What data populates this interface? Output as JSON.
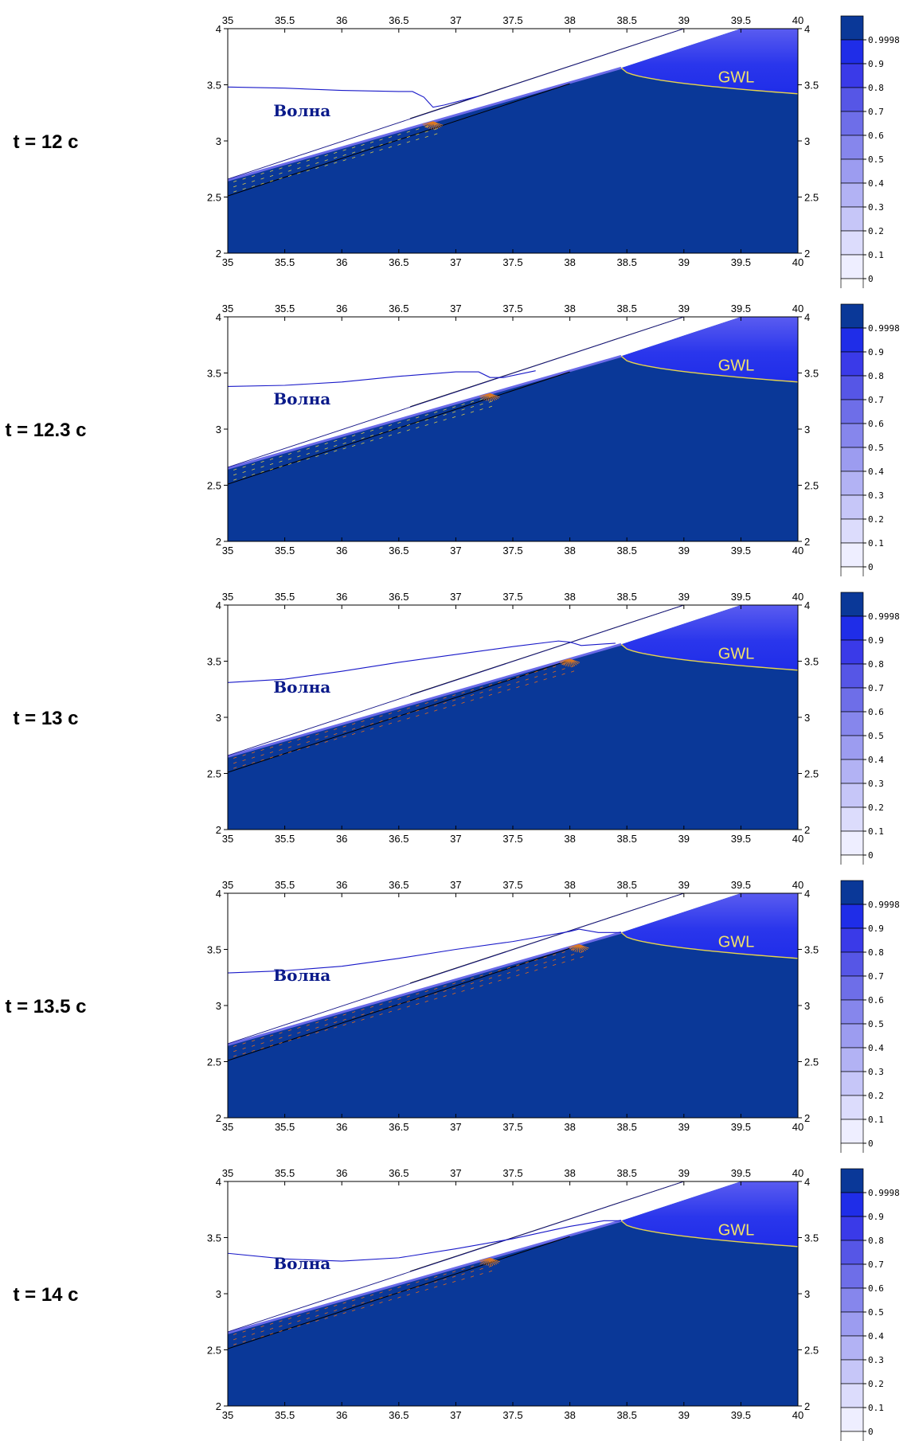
{
  "chart_data": [
    {
      "type": "contour",
      "time_label": "t = 12 с",
      "wave_label": "Волна",
      "gwl_label": "GWL",
      "xlim": [
        35,
        40
      ],
      "ylim": [
        2,
        4
      ],
      "x_ticks": [
        "35",
        "35.5",
        "36",
        "36.5",
        "37",
        "37.5",
        "38",
        "38.5",
        "39",
        "39.5",
        "40"
      ],
      "y_ticks": [
        "2",
        "2.5",
        "3",
        "3.5",
        "4"
      ],
      "colorbar": [
        "0.9998",
        "0.9",
        "0.8",
        "0.7",
        "0.6",
        "0.5",
        "0.4",
        "0.3",
        "0.2",
        "0.1",
        "0"
      ],
      "wave_profile": [
        [
          35,
          3.48
        ],
        [
          35.5,
          3.47
        ],
        [
          36,
          3.45
        ],
        [
          36.5,
          3.44
        ],
        [
          36.62,
          3.44
        ],
        [
          36.72,
          3.39
        ],
        [
          36.8,
          3.3
        ],
        [
          36.9,
          3.32
        ],
        [
          37.2,
          3.4
        ]
      ],
      "front_x": 36.8
    },
    {
      "type": "contour",
      "time_label": "t = 12.3 с",
      "wave_label": "Волна",
      "gwl_label": "GWL",
      "xlim": [
        35,
        40
      ],
      "ylim": [
        2,
        4
      ],
      "x_ticks": [
        "35",
        "35.5",
        "36",
        "36.5",
        "37",
        "37.5",
        "38",
        "38.5",
        "39",
        "39.5",
        "40"
      ],
      "y_ticks": [
        "2",
        "2.5",
        "3",
        "3.5",
        "4"
      ],
      "colorbar": [
        "0.9998",
        "0.9",
        "0.8",
        "0.7",
        "0.6",
        "0.5",
        "0.4",
        "0.3",
        "0.2",
        "0.1",
        "0"
      ],
      "wave_profile": [
        [
          35,
          3.38
        ],
        [
          35.5,
          3.39
        ],
        [
          36,
          3.42
        ],
        [
          36.5,
          3.47
        ],
        [
          37,
          3.51
        ],
        [
          37.2,
          3.51
        ],
        [
          37.3,
          3.46
        ],
        [
          37.42,
          3.46
        ],
        [
          37.7,
          3.52
        ]
      ],
      "front_x": 37.3
    },
    {
      "type": "contour",
      "time_label": "t = 13 с",
      "wave_label": "Волна",
      "gwl_label": "GWL",
      "xlim": [
        35,
        40
      ],
      "ylim": [
        2,
        4
      ],
      "x_ticks": [
        "35",
        "35.5",
        "36",
        "36.5",
        "37",
        "37.5",
        "38",
        "38.5",
        "39",
        "39.5",
        "40"
      ],
      "y_ticks": [
        "2",
        "2.5",
        "3",
        "3.5",
        "4"
      ],
      "colorbar": [
        "0.9998",
        "0.9",
        "0.8",
        "0.7",
        "0.6",
        "0.5",
        "0.4",
        "0.3",
        "0.2",
        "0.1",
        "0"
      ],
      "wave_profile": [
        [
          35,
          3.31
        ],
        [
          35.5,
          3.34
        ],
        [
          36,
          3.41
        ],
        [
          36.5,
          3.49
        ],
        [
          37,
          3.56
        ],
        [
          37.5,
          3.63
        ],
        [
          37.9,
          3.68
        ],
        [
          38,
          3.67
        ],
        [
          38.1,
          3.64
        ],
        [
          38.4,
          3.66
        ]
      ],
      "front_x": 38.0
    },
    {
      "type": "contour",
      "time_label": "t = 13.5 с",
      "wave_label": "Волна",
      "gwl_label": "GWL",
      "xlim": [
        35,
        40
      ],
      "ylim": [
        2,
        4
      ],
      "x_ticks": [
        "35",
        "35.5",
        "36",
        "36.5",
        "37",
        "37.5",
        "38",
        "38.5",
        "39",
        "39.5",
        "40"
      ],
      "y_ticks": [
        "2",
        "2.5",
        "3",
        "3.5",
        "4"
      ],
      "colorbar": [
        "0.9998",
        "0.9",
        "0.8",
        "0.7",
        "0.6",
        "0.5",
        "0.4",
        "0.3",
        "0.2",
        "0.1",
        "0"
      ],
      "wave_profile": [
        [
          35,
          3.29
        ],
        [
          35.5,
          3.31
        ],
        [
          36,
          3.35
        ],
        [
          36.5,
          3.42
        ],
        [
          37,
          3.5
        ],
        [
          37.5,
          3.57
        ],
        [
          38,
          3.66
        ],
        [
          38.08,
          3.68
        ],
        [
          38.25,
          3.65
        ],
        [
          38.45,
          3.65
        ]
      ],
      "front_x": 38.08
    },
    {
      "type": "contour",
      "time_label": "t = 14 с",
      "wave_label": "Волна",
      "gwl_label": "GWL",
      "xlim": [
        35,
        40
      ],
      "ylim": [
        2,
        4
      ],
      "x_ticks": [
        "35",
        "35.5",
        "36",
        "36.5",
        "37",
        "37.5",
        "38",
        "38.5",
        "39",
        "39.5",
        "40"
      ],
      "y_ticks": [
        "2",
        "2.5",
        "3",
        "3.5",
        "4"
      ],
      "colorbar": [
        "0.9998",
        "0.9",
        "0.8",
        "0.7",
        "0.6",
        "0.5",
        "0.4",
        "0.3",
        "0.2",
        "0.1",
        "0"
      ],
      "wave_profile": [
        [
          35,
          3.36
        ],
        [
          35.5,
          3.31
        ],
        [
          36,
          3.29
        ],
        [
          36.5,
          3.32
        ],
        [
          37,
          3.4
        ],
        [
          37.5,
          3.49
        ],
        [
          38,
          3.6
        ],
        [
          38.3,
          3.65
        ],
        [
          38.45,
          3.65
        ]
      ],
      "front_x": 37.3
    }
  ]
}
